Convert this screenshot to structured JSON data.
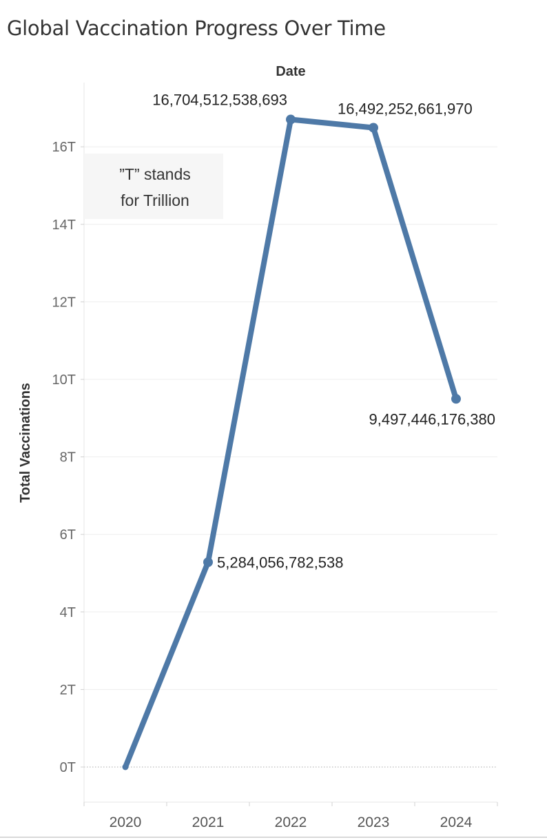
{
  "chart_data": {
    "type": "line",
    "title": "Global Vaccination Progress Over Time",
    "x_header": "Date",
    "ylabel": "Total Vaccinations",
    "categories": [
      "2020",
      "2021",
      "2022",
      "2023",
      "2024"
    ],
    "series": [
      {
        "values": [
          0,
          5284056782538,
          16704512538693,
          16492252661970,
          9497446176380
        ],
        "color": "#4e79a7"
      }
    ],
    "data_labels": [
      "",
      "5,284,056,782,538",
      "16,704,512,538,693",
      "16,492,252,661,970",
      "9,497,446,176,380"
    ],
    "y_ticks": [
      0,
      2,
      4,
      6,
      8,
      10,
      12,
      14,
      16
    ],
    "y_tick_labels": [
      "0T",
      "2T",
      "4T",
      "6T",
      "8T",
      "10T",
      "12T",
      "14T",
      "16T"
    ],
    "ylim": [
      -1000000000000.0,
      17800000000000.0
    ],
    "annotation": [
      "”T” stands",
      "for Trillion"
    ],
    "grid": true
  }
}
